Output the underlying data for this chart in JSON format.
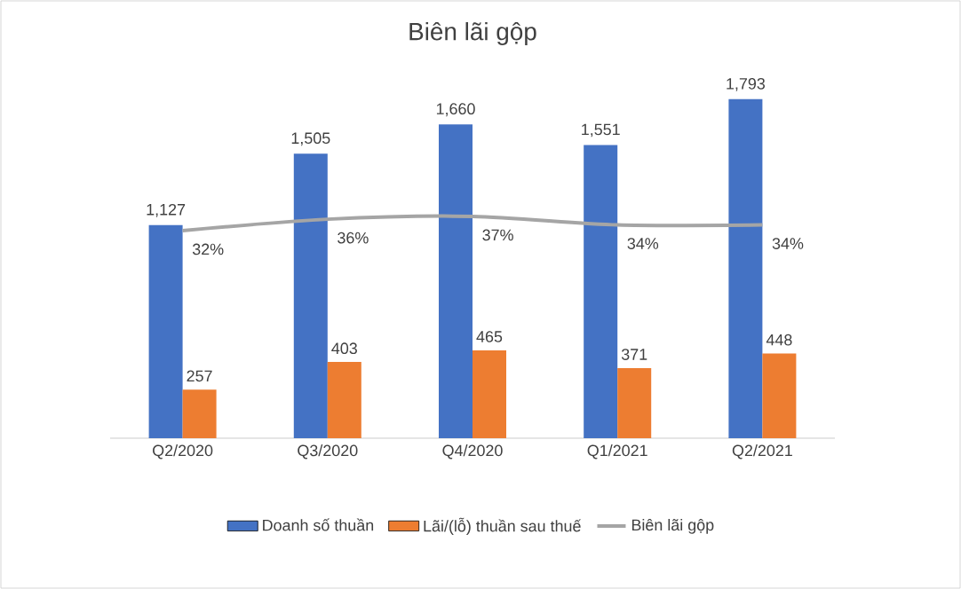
{
  "chart_data": {
    "type": "bar",
    "title": "Biên lãi gộp",
    "categories": [
      "Q2/2020",
      "Q3/2020",
      "Q4/2020",
      "Q1/2021",
      "Q2/2021"
    ],
    "series": [
      {
        "name": "Doanh số thuần",
        "color": "#4472c4",
        "values": [
          1127,
          1505,
          1660,
          1551,
          1793
        ],
        "value_labels": [
          "1,127",
          "1,505",
          "1,660",
          "1,551",
          "1,793"
        ]
      },
      {
        "name": "Lãi/(lỗ) thuần sau thuế",
        "color": "#ed7d31",
        "values": [
          257,
          403,
          465,
          371,
          448
        ],
        "value_labels": [
          "257",
          "403",
          "465",
          "371",
          "448"
        ]
      },
      {
        "name": "Biên lãi gộp",
        "type": "line",
        "axis": "y2",
        "color": "#a5a5a5",
        "values": [
          32,
          36,
          37,
          34,
          34
        ],
        "value_labels": [
          "32%",
          "36%",
          "37%",
          "34%",
          "34%"
        ]
      }
    ],
    "tick_labels": "x",
    "legend": "bottom"
  }
}
